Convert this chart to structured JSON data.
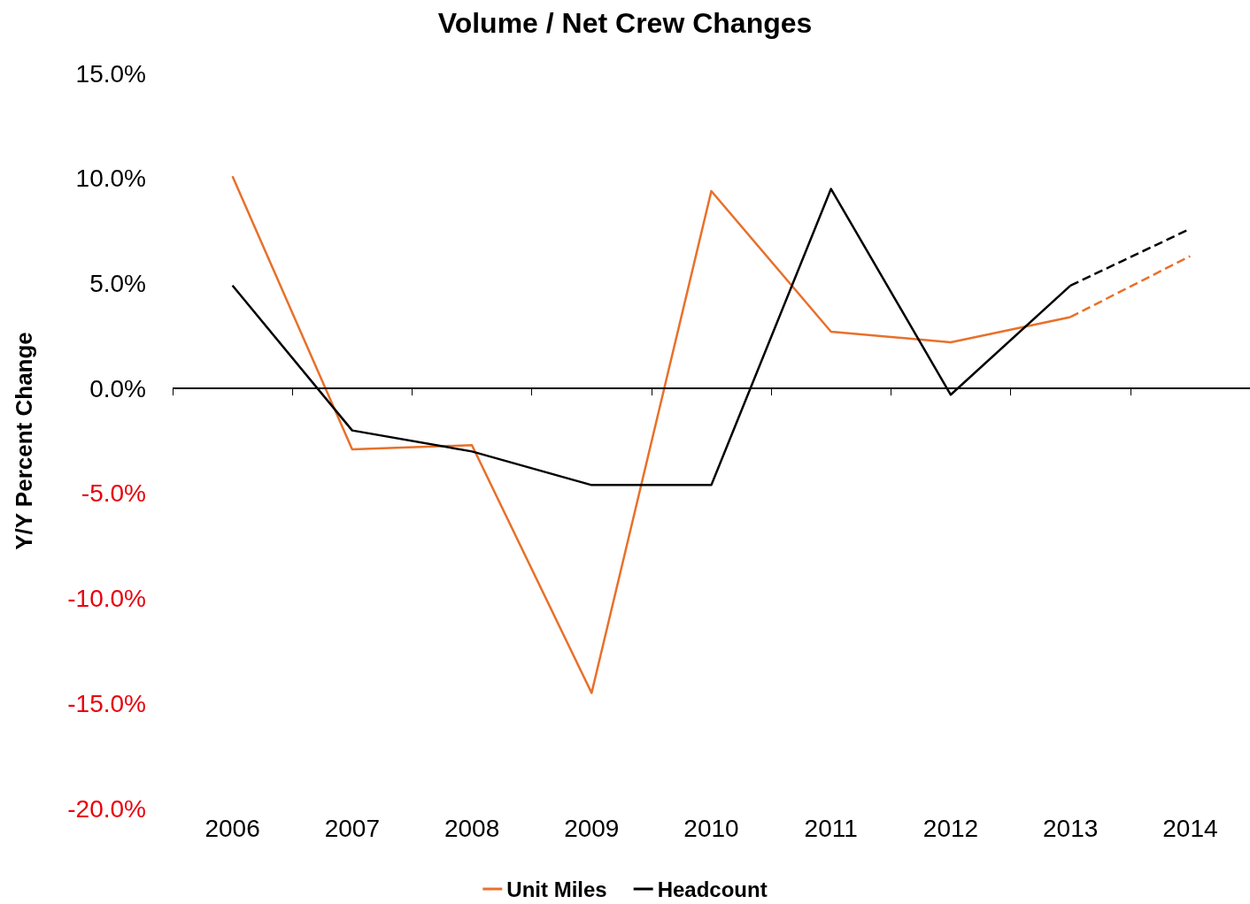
{
  "chart_data": {
    "type": "line",
    "title": "Volume / Net Crew Changes",
    "ylabel": "Y/Y Percent Change",
    "categories": [
      "2006",
      "2007",
      "2008",
      "2009",
      "2010",
      "2011",
      "2012",
      "2013",
      "2014"
    ],
    "series": [
      {
        "name": "Unit Miles",
        "color": "#e8702a",
        "values": [
          10.1,
          -2.9,
          -2.7,
          -14.5,
          9.4,
          2.7,
          2.2,
          3.4,
          null
        ]
      },
      {
        "name": "Headcount",
        "color": "#000000",
        "values": [
          4.9,
          -2.0,
          -3.0,
          -4.6,
          -4.6,
          9.5,
          -0.3,
          4.9,
          null
        ]
      },
      {
        "color": "#e8702a",
        "line_style": "dashed",
        "values": [
          null,
          null,
          null,
          null,
          null,
          null,
          null,
          3.4,
          6.3
        ]
      },
      {
        "color": "#000000",
        "line_style": "dashed",
        "values": [
          null,
          null,
          null,
          null,
          null,
          null,
          null,
          4.9,
          7.6
        ]
      }
    ],
    "ylim": [
      -20,
      15
    ],
    "yticks": [
      {
        "value": -20,
        "label": "-20.0%"
      },
      {
        "value": -15,
        "label": "-15.0%"
      },
      {
        "value": -10,
        "label": "-10.0%"
      },
      {
        "value": -5,
        "label": "-5.0%"
      },
      {
        "value": 0,
        "label": "0.0%"
      },
      {
        "value": 5,
        "label": "5.0%"
      },
      {
        "value": 10,
        "label": "10.0%"
      },
      {
        "value": 15,
        "label": "15.0%"
      }
    ],
    "ref_lines": [
      {
        "axis": "y",
        "value": 0,
        "color": "#000000"
      }
    ],
    "grid": false,
    "legend": "bottom",
    "marker": "none",
    "line_style": "solid"
  }
}
